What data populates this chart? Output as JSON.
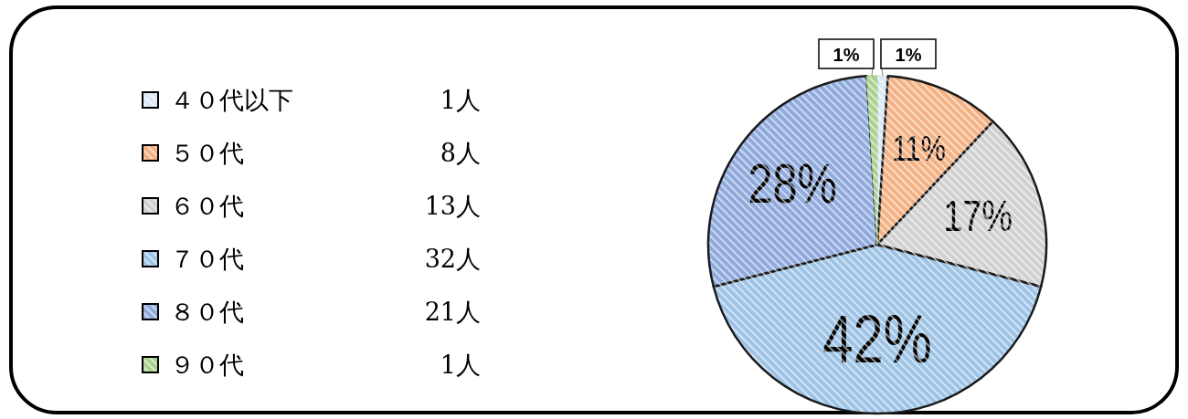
{
  "chart_data": {
    "type": "pie",
    "categories": [
      "４０代以下",
      "５０代",
      "６０代",
      "７０代",
      "８０代",
      "９０代"
    ],
    "values": [
      1,
      11,
      17,
      42,
      28,
      1
    ],
    "value_labels": [
      "1%",
      "11%",
      "17%",
      "42%",
      "28%",
      "1%"
    ],
    "colors": [
      "#dbe8f5",
      "#f4b183",
      "#d0d0d0",
      "#9dc3e6",
      "#8faadc",
      "#a9d18e"
    ],
    "annotations": [
      "1人",
      "8人",
      "13人",
      "32人",
      "21人",
      "1人"
    ],
    "legend": "left"
  }
}
